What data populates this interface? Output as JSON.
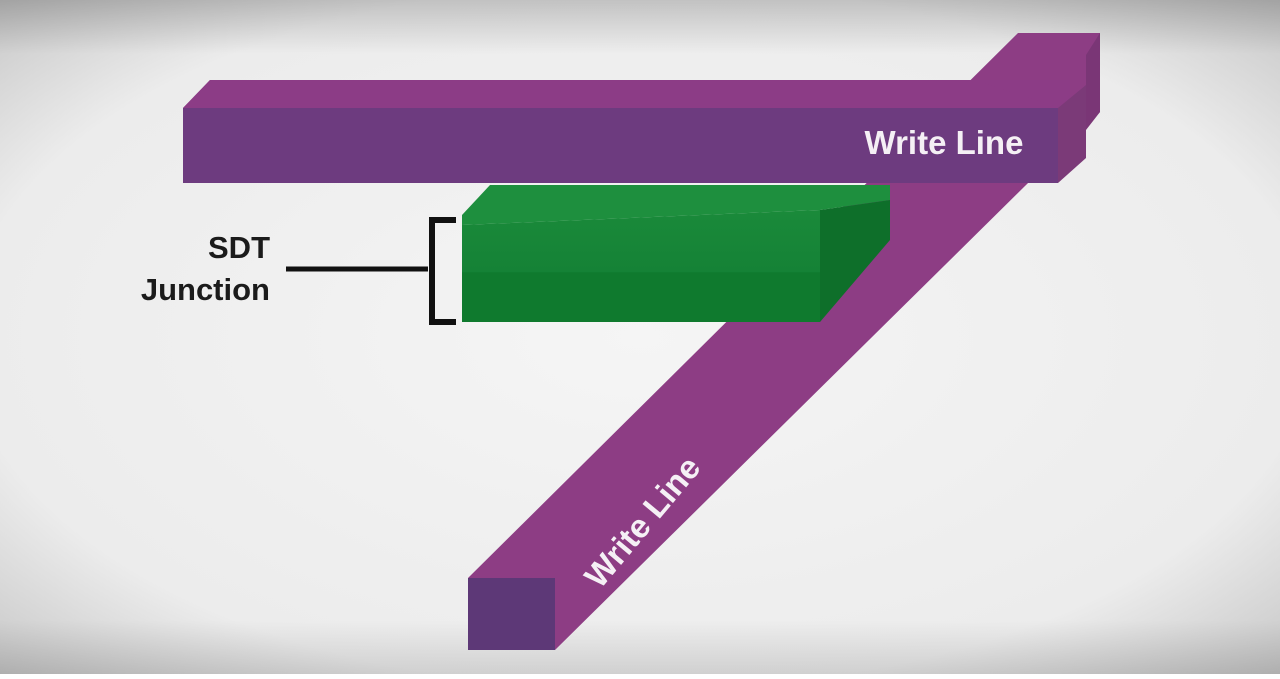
{
  "diagram": {
    "labels": {
      "top_write_line": "Write Line",
      "diagonal_write_line": "Write Line",
      "junction_label_line1": "SDT",
      "junction_label_line2": "Junction"
    },
    "colors": {
      "background_center": "#f4f4f4",
      "background_edge": "#c2c2c2",
      "write_line_top_face": "#8c3c86",
      "write_line_front_face": "#6d3b7f",
      "write_line_side_face": "#6a3475",
      "write_line_diagonal_face": "#8d3d84",
      "write_line_end_face": "#5d3877",
      "junction_top_face": "#1a8a3a",
      "junction_front_face": "#107a2e",
      "junction_side_face": "#0e6f2a",
      "label_text": "#1b1b1b",
      "write_line_text": "#f5f0f5",
      "bracket": "#111111"
    }
  }
}
